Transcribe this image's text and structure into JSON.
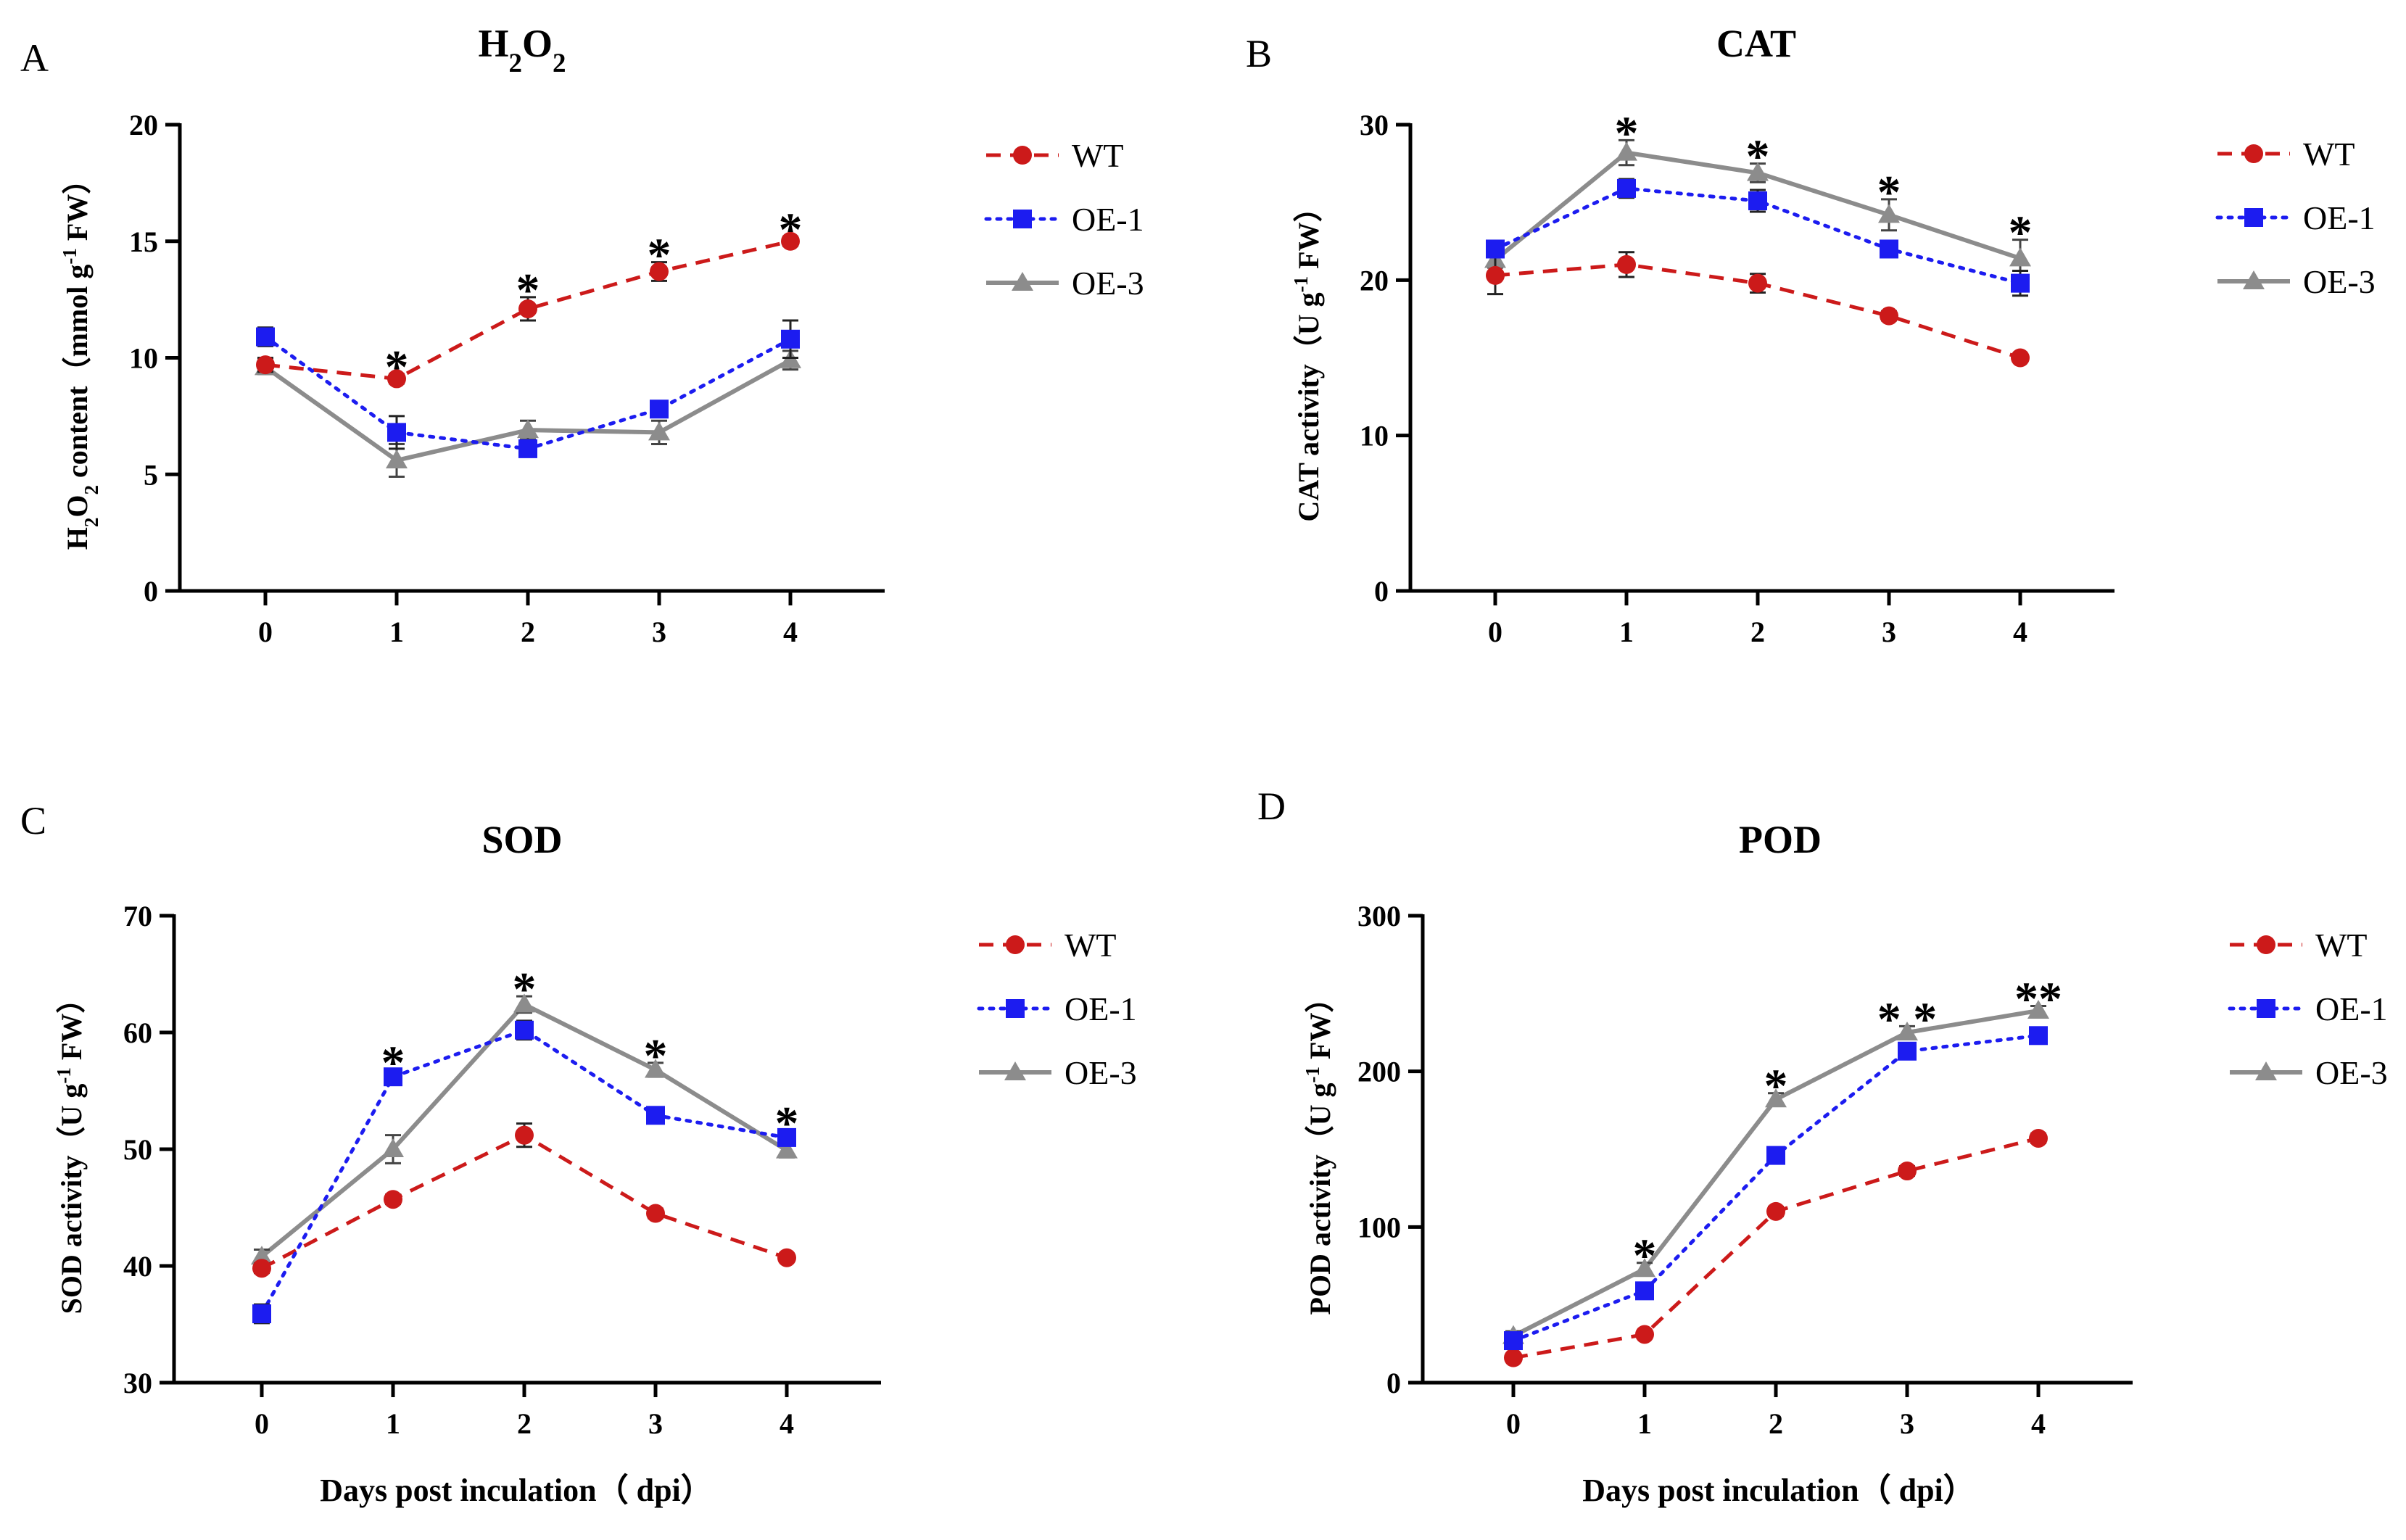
{
  "chart_data": [
    {
      "panel": "A",
      "type": "line",
      "title": [
        "H",
        "2",
        "O",
        "2"
      ],
      "ylabel": [
        "H",
        "2",
        "O",
        "2",
        " content（mmol g",
        "-1",
        " FW）"
      ],
      "xlabel": "",
      "ylim": [
        0,
        20
      ],
      "yticks": [
        0,
        5,
        10,
        15,
        20
      ],
      "x": [
        0,
        1,
        2,
        3,
        4
      ],
      "series": [
        {
          "name": "WT",
          "color": "#cc1a1a",
          "marker": "circle",
          "dash": "dashed",
          "values": [
            9.7,
            9.1,
            12.1,
            13.7,
            15.0
          ],
          "errors": [
            0.3,
            0.2,
            0.5,
            0.4,
            0.2
          ]
        },
        {
          "name": "OE-1",
          "color": "#1c1cf0",
          "marker": "square",
          "dash": "dotted",
          "values": [
            10.9,
            6.8,
            6.1,
            7.8,
            10.8
          ],
          "errors": [
            0.4,
            0.7,
            0.3,
            0.3,
            0.8
          ]
        },
        {
          "name": "OE-3",
          "color": "#8c8c8c",
          "marker": "triangle",
          "dash": "solid",
          "values": [
            9.6,
            5.6,
            6.9,
            6.8,
            9.9
          ],
          "errors": [
            0.3,
            0.7,
            0.4,
            0.5,
            0.4
          ]
        }
      ],
      "annotations": [
        {
          "x": 1,
          "text": "*"
        },
        {
          "x": 2,
          "text": "*"
        },
        {
          "x": 3,
          "text": "*"
        },
        {
          "x": 4,
          "text": "*"
        }
      ]
    },
    {
      "panel": "B",
      "type": "line",
      "title": [
        "CAT"
      ],
      "ylabel": [
        "CAT activity（U g",
        "-1",
        " FW）"
      ],
      "xlabel": "",
      "ylim": [
        0,
        30
      ],
      "yticks": [
        0,
        10,
        20,
        30
      ],
      "x": [
        0,
        1,
        2,
        3,
        4
      ],
      "series": [
        {
          "name": "WT",
          "color": "#cc1a1a",
          "marker": "circle",
          "dash": "dashed",
          "values": [
            20.3,
            21.0,
            19.8,
            17.7,
            15.0
          ],
          "errors": [
            1.2,
            0.8,
            0.6,
            0.3,
            0.2
          ]
        },
        {
          "name": "OE-1",
          "color": "#1c1cf0",
          "marker": "square",
          "dash": "dotted",
          "values": [
            22.0,
            25.9,
            25.1,
            22.0,
            19.8
          ],
          "errors": [
            0.3,
            0.6,
            0.7,
            0.5,
            0.8
          ]
        },
        {
          "name": "OE-3",
          "color": "#8c8c8c",
          "marker": "triangle",
          "dash": "solid",
          "values": [
            21.3,
            28.2,
            26.9,
            24.2,
            21.4
          ],
          "errors": [
            0.5,
            0.8,
            0.6,
            1.0,
            1.2
          ]
        }
      ],
      "annotations": [
        {
          "x": 1,
          "text": "*"
        },
        {
          "x": 2,
          "text": "*"
        },
        {
          "x": 3,
          "text": "*"
        },
        {
          "x": 4,
          "text": "*"
        }
      ]
    },
    {
      "panel": "C",
      "type": "line",
      "title": [
        "SOD"
      ],
      "ylabel": [
        "SOD activity（U g",
        "-1",
        " FW）"
      ],
      "xlabel": "Days post inculation（ dpi）",
      "ylim": [
        30,
        70
      ],
      "yticks": [
        30,
        40,
        50,
        60,
        70
      ],
      "x": [
        0,
        1,
        2,
        3,
        4
      ],
      "series": [
        {
          "name": "WT",
          "color": "#cc1a1a",
          "marker": "circle",
          "dash": "dashed",
          "values": [
            39.8,
            45.7,
            51.2,
            44.5,
            40.7
          ],
          "errors": [
            0.4,
            0.4,
            1.0,
            0.4,
            0.3
          ]
        },
        {
          "name": "OE-1",
          "color": "#1c1cf0",
          "marker": "square",
          "dash": "dotted",
          "values": [
            35.9,
            56.2,
            60.2,
            52.9,
            51.0
          ],
          "errors": [
            0.8,
            0.6,
            0.8,
            0.5,
            0.6
          ]
        },
        {
          "name": "OE-3",
          "color": "#8c8c8c",
          "marker": "triangle",
          "dash": "solid",
          "values": [
            40.8,
            50.0,
            62.4,
            56.8,
            49.9
          ],
          "errors": [
            0.6,
            1.2,
            0.7,
            0.6,
            0.6
          ]
        }
      ],
      "annotations": [
        {
          "x": 1,
          "text": "*"
        },
        {
          "x": 2,
          "text": "*"
        },
        {
          "x": 3,
          "text": "*"
        },
        {
          "x": 4,
          "text": "*"
        }
      ]
    },
    {
      "panel": "D",
      "type": "line",
      "title": [
        "POD"
      ],
      "ylabel": [
        "POD activity（U g",
        "-1",
        " FW）"
      ],
      "xlabel": "Days post inculation（ dpi）",
      "ylim": [
        0,
        300
      ],
      "yticks": [
        0,
        100,
        200,
        300
      ],
      "x": [
        0,
        1,
        2,
        3,
        4
      ],
      "series": [
        {
          "name": "WT",
          "color": "#cc1a1a",
          "marker": "circle",
          "dash": "dashed",
          "values": [
            16,
            31,
            110,
            136,
            157
          ],
          "errors": [
            2,
            2,
            3,
            3,
            3
          ]
        },
        {
          "name": "OE-1",
          "color": "#1c1cf0",
          "marker": "square",
          "dash": "dotted",
          "values": [
            27,
            59,
            146,
            213,
            223
          ],
          "errors": [
            3,
            3,
            4,
            4,
            3
          ]
        },
        {
          "name": "OE-3",
          "color": "#8c8c8c",
          "marker": "triangle",
          "dash": "solid",
          "values": [
            30,
            73,
            182,
            225,
            239
          ],
          "errors": [
            3,
            4,
            4,
            4,
            3
          ]
        }
      ],
      "annotations": [
        {
          "x": 1,
          "text": "*"
        },
        {
          "x": 2,
          "text": "*"
        },
        {
          "x": 3,
          "text": "* *"
        },
        {
          "x": 4,
          "text": "**"
        }
      ]
    }
  ]
}
